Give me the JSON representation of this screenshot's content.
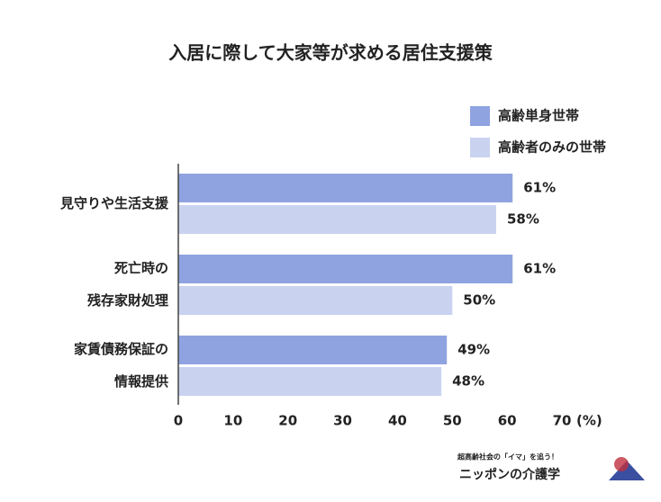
{
  "chart_data": {
    "type": "hbar",
    "title": "入居に際して大家等が求める居住支援策",
    "categories": [
      [
        "見守りや生活支援"
      ],
      [
        "死亡時の",
        "残存家財処理"
      ],
      [
        "家賃債務保証の",
        "情報提供"
      ]
    ],
    "series": [
      {
        "name": "高齢単身世帯",
        "color": "#8fa3e0",
        "values": [
          61,
          61,
          49
        ],
        "value_labels": [
          "61%",
          "61%",
          "49%"
        ]
      },
      {
        "name": "高齢者のみの世帯",
        "color": "#c9d3f0",
        "values": [
          58,
          50,
          48
        ],
        "value_labels": [
          "58%",
          "50%",
          "48%"
        ]
      }
    ],
    "xlim": [
      0,
      70
    ],
    "xticks": [
      0,
      10,
      20,
      30,
      40,
      50,
      60,
      70
    ],
    "xlabel": "(%)",
    "legend": "top-right"
  },
  "logo": {
    "tagline": "超高齢社会の「イマ」を追う！",
    "name": "ニッポンの介護学"
  }
}
